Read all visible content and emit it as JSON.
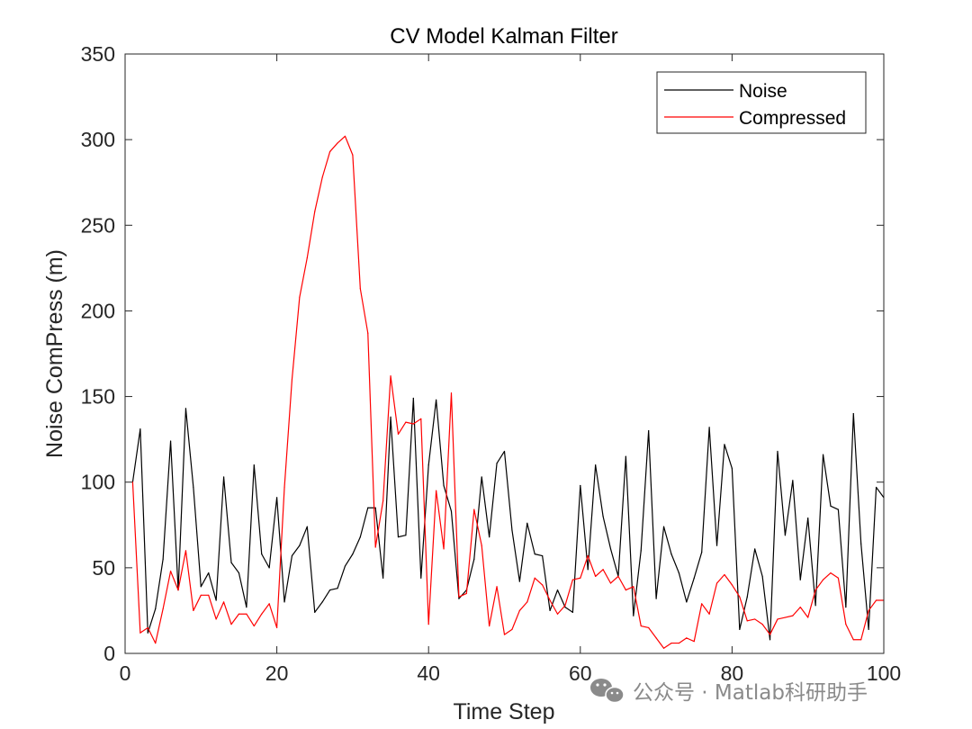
{
  "chart_data": {
    "type": "line",
    "title": "CV Model Kalman Filter",
    "xlabel": "Time Step",
    "ylabel": "Noise ComPress (m)",
    "xlim": [
      0,
      100
    ],
    "ylim": [
      0,
      350
    ],
    "xticks": [
      0,
      20,
      40,
      60,
      80,
      100
    ],
    "yticks": [
      0,
      50,
      100,
      150,
      200,
      250,
      300,
      350
    ],
    "legend_position": "top-right",
    "series": [
      {
        "name": "Noise",
        "color": "#000000",
        "x": [
          1,
          2,
          3,
          4,
          5,
          6,
          7,
          8,
          9,
          10,
          11,
          12,
          13,
          14,
          15,
          16,
          17,
          18,
          19,
          20,
          21,
          22,
          23,
          24,
          25,
          26,
          27,
          28,
          29,
          30,
          31,
          32,
          33,
          34,
          35,
          36,
          37,
          38,
          39,
          40,
          41,
          42,
          43,
          44,
          45,
          46,
          47,
          48,
          49,
          50,
          51,
          52,
          53,
          54,
          55,
          56,
          57,
          58,
          59,
          60,
          61,
          62,
          63,
          64,
          65,
          66,
          67,
          68,
          69,
          70,
          71,
          72,
          73,
          74,
          75,
          76,
          77,
          78,
          79,
          80,
          81,
          82,
          83,
          84,
          85,
          86,
          87,
          88,
          89,
          90,
          91,
          92,
          93,
          94,
          95,
          96,
          97,
          98,
          99,
          100
        ],
        "values": [
          100,
          131,
          12,
          26,
          55,
          124,
          37,
          143,
          97,
          39,
          47,
          31,
          103,
          53,
          47,
          27,
          110,
          58,
          50,
          91,
          30,
          57,
          63,
          74,
          24,
          30,
          37,
          38,
          51,
          58,
          68,
          85,
          85,
          44,
          138,
          68,
          69,
          149,
          44,
          110,
          148,
          98,
          83,
          32,
          37,
          55,
          103,
          68,
          111,
          118,
          72,
          42,
          76,
          58,
          57,
          25,
          37,
          27,
          24,
          98,
          49,
          110,
          80,
          61,
          45,
          115,
          22,
          60,
          130,
          32,
          74,
          58,
          47,
          30,
          44,
          59,
          132,
          63,
          122,
          108,
          14,
          33,
          61,
          45,
          8,
          118,
          69,
          101,
          43,
          79,
          28,
          116,
          86,
          84,
          27,
          140,
          64,
          14,
          97,
          91
        ]
      },
      {
        "name": "Compressed",
        "color": "#ff0000",
        "x": [
          1,
          2,
          3,
          4,
          5,
          6,
          7,
          8,
          9,
          10,
          11,
          12,
          13,
          14,
          15,
          16,
          17,
          18,
          19,
          20,
          21,
          22,
          23,
          24,
          25,
          26,
          27,
          28,
          29,
          30,
          31,
          32,
          33,
          34,
          35,
          36,
          37,
          38,
          39,
          40,
          41,
          42,
          43,
          44,
          45,
          46,
          47,
          48,
          49,
          50,
          51,
          52,
          53,
          54,
          55,
          56,
          57,
          58,
          59,
          60,
          61,
          62,
          63,
          64,
          65,
          66,
          67,
          68,
          69,
          70,
          71,
          72,
          73,
          74,
          75,
          76,
          77,
          78,
          79,
          80,
          81,
          82,
          83,
          84,
          85,
          86,
          87,
          88,
          89,
          90,
          91,
          92,
          93,
          94,
          95,
          96,
          97,
          98,
          99,
          100
        ],
        "values": [
          100,
          12,
          15,
          6,
          26,
          48,
          37,
          60,
          25,
          34,
          34,
          20,
          30,
          17,
          23,
          23,
          16,
          23,
          29,
          15,
          97,
          160,
          208,
          231,
          258,
          278,
          293,
          298,
          302,
          291,
          213,
          187,
          62,
          89,
          162,
          128,
          135,
          134,
          137,
          17,
          95,
          61,
          152,
          33,
          35,
          84,
          63,
          16,
          39,
          11,
          14,
          25,
          30,
          44,
          40,
          31,
          23,
          28,
          43,
          44,
          57,
          45,
          49,
          41,
          45,
          37,
          39,
          16,
          15,
          9,
          3,
          6,
          6,
          9,
          7,
          29,
          23,
          41,
          46,
          40,
          33,
          19,
          20,
          17,
          11,
          20,
          21,
          22,
          27,
          21,
          37,
          43,
          47,
          44,
          17,
          8,
          8,
          25,
          31,
          31
        ]
      }
    ]
  },
  "watermark": {
    "icon": "wechat-icon",
    "text": "公众号 · Matlab科研助手"
  }
}
